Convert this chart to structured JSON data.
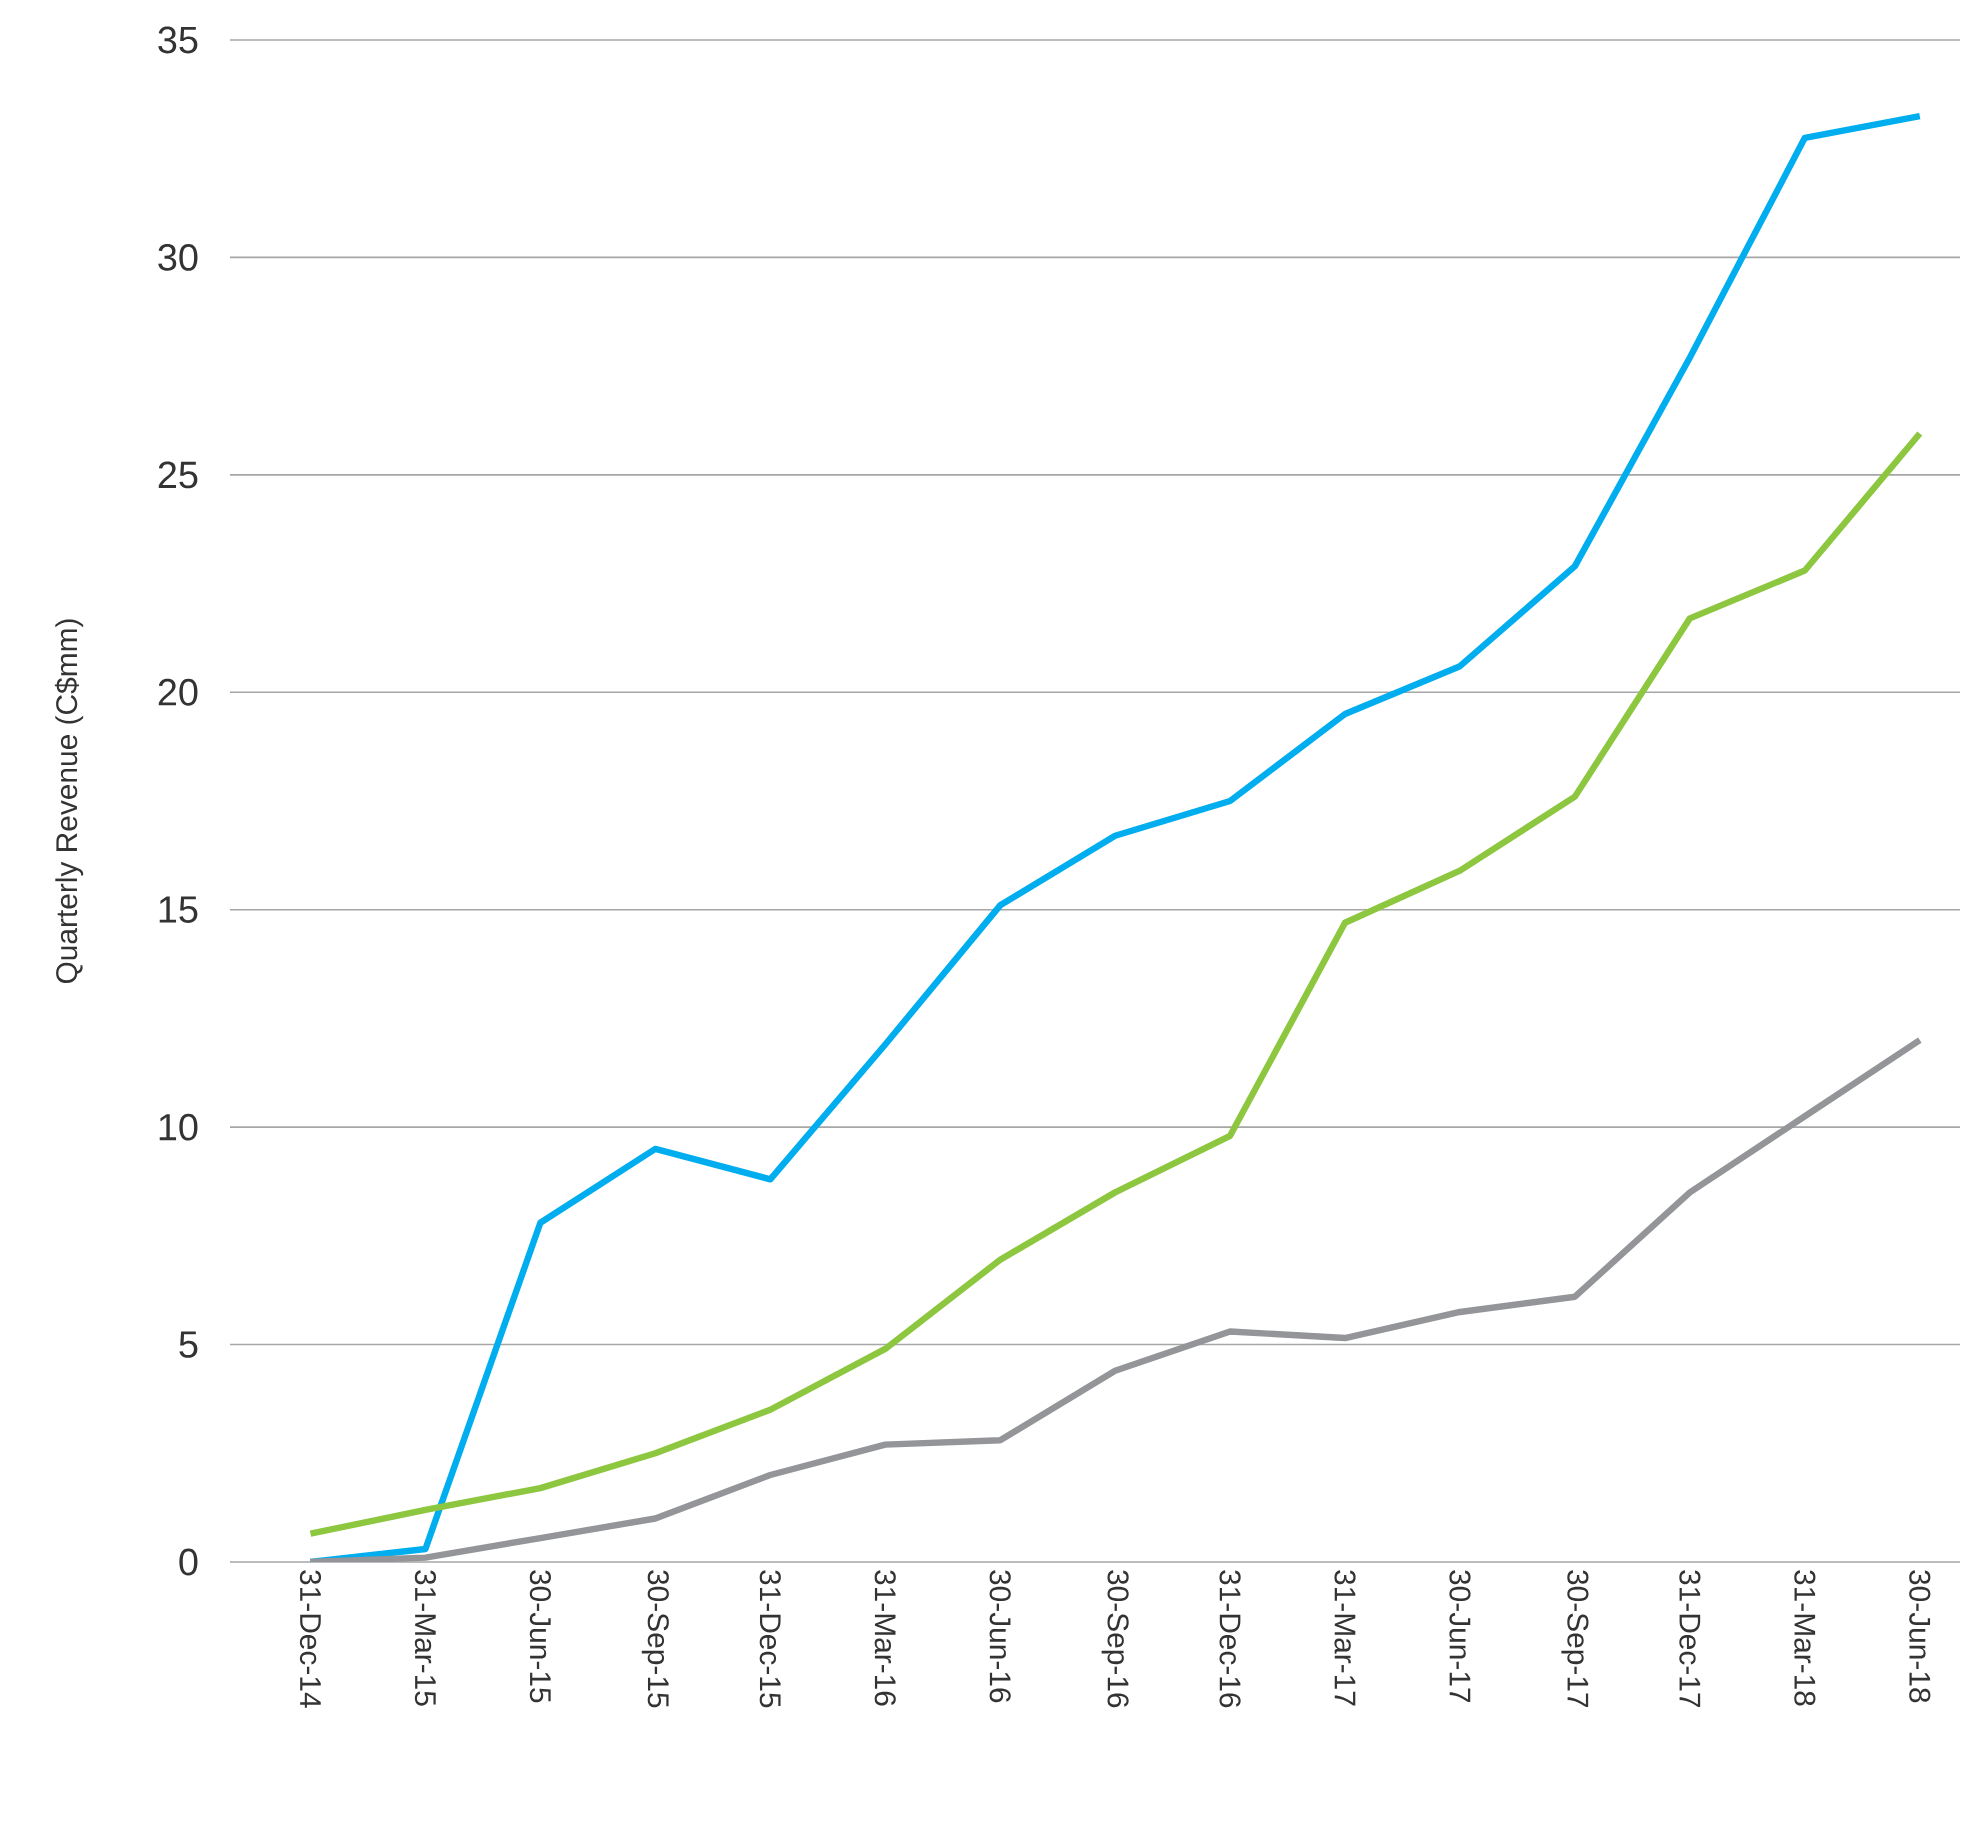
{
  "chart_data": {
    "type": "line",
    "ylabel": "Quarterly Revenue (C$mm)",
    "categories": [
      "31-Dec-14",
      "31-Mar-15",
      "30-Jun-15",
      "30-Sep-15",
      "31-Dec-15",
      "31-Mar-16",
      "30-Jun-16",
      "30-Sep-16",
      "31-Dec-16",
      "31-Mar-17",
      "30-Jun-17",
      "30-Sep-17",
      "31-Dec-17",
      "31-Mar-18",
      "30-Jun-18"
    ],
    "series": [
      {
        "color": "#00aeef",
        "values": [
          0,
          0.3,
          7.8,
          9.5,
          8.8,
          11.9,
          15.1,
          16.7,
          17.5,
          19.5,
          20.6,
          22.9,
          27.7,
          32.75,
          33.25
        ]
      },
      {
        "color": "#8dc63f",
        "values": [
          0.65,
          1.2,
          1.7,
          2.5,
          3.5,
          4.9,
          6.95,
          8.5,
          9.8,
          14.7,
          15.9,
          17.6,
          21.7,
          22.8,
          25.95
        ]
      },
      {
        "color": "#939598",
        "values": [
          0,
          0.1,
          0.55,
          1.0,
          2.0,
          2.7,
          2.8,
          4.4,
          5.3,
          5.15,
          5.75,
          6.1,
          8.5,
          10.25,
          12.0
        ]
      }
    ],
    "ylim": [
      0,
      35
    ],
    "yticks": [
      0,
      5,
      10,
      15,
      20,
      25,
      30,
      35
    ],
    "grid": "y",
    "marker": "none",
    "line_style": "solid"
  }
}
